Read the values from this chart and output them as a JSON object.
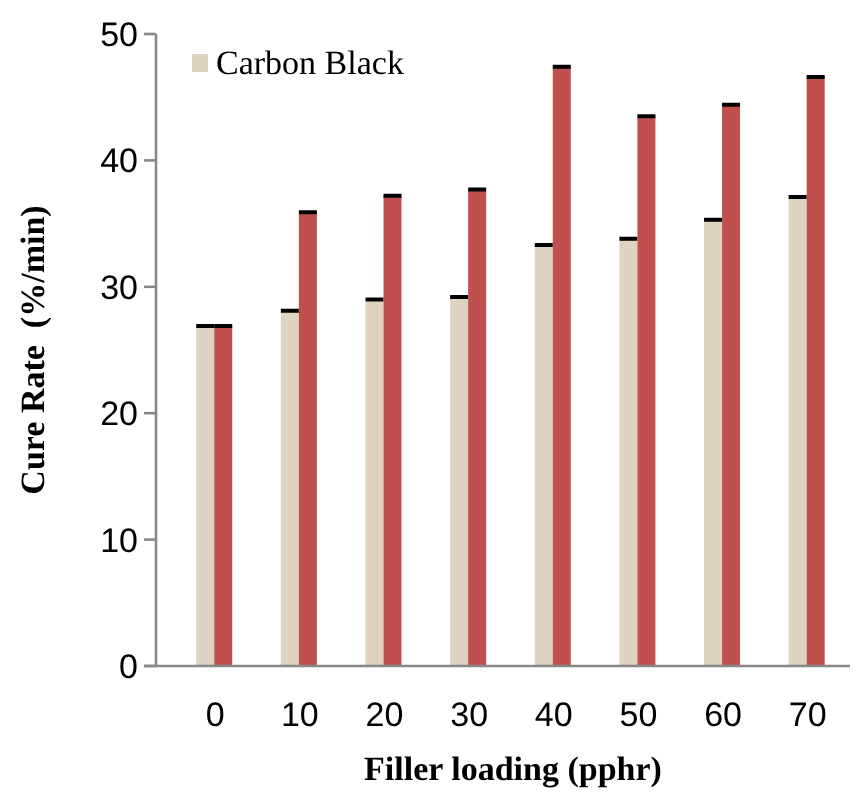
{
  "chart_data": {
    "type": "bar",
    "xlabel": "Filler loading (pphr)",
    "ylabel": "Cure Rate  (%/min)",
    "categories": [
      "0",
      "10",
      "20",
      "30",
      "40",
      "50",
      "60",
      "70"
    ],
    "series": [
      {
        "name": "Carbon Black",
        "color": "#ddd3c0",
        "values": [
          26.9,
          28.1,
          29.0,
          29.2,
          33.3,
          33.8,
          35.3,
          37.1
        ]
      },
      {
        "color": "#c0504d",
        "values": [
          26.9,
          35.9,
          37.2,
          37.7,
          47.4,
          43.5,
          44.4,
          46.6
        ]
      }
    ],
    "ylim": [
      0,
      50
    ],
    "yticks": [
      0,
      10,
      20,
      30,
      40,
      50
    ],
    "legend": "top left",
    "grid": false
  }
}
